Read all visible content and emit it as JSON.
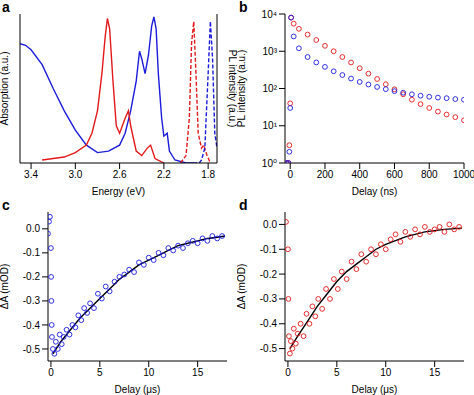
{
  "chart_data": [
    {
      "title": "a",
      "type": "line",
      "x_label": "Energy (eV)",
      "y_label": "Absorption (a.u.)",
      "y2_label": "PL intensity (a.u.)",
      "xlim": [
        3.5,
        1.72
      ],
      "xticks": [
        3.4,
        {
          "value": 3,
          "label": "3.0"
        },
        2.6,
        2.2,
        1.8
      ],
      "ylim": [
        0,
        1
      ],
      "y2lim": [
        0,
        1
      ],
      "tick_labels": "x",
      "series": [
        {
          "color": "#1c1cdc",
          "line_style": "solid",
          "x": [
            3.5,
            3.45,
            3.4,
            3.3,
            3.2,
            3.1,
            3.0,
            2.9,
            2.8,
            2.7,
            2.6,
            2.55,
            2.5,
            2.45,
            2.42,
            2.4,
            2.37,
            2.34,
            2.31,
            2.29,
            2.27,
            2.25,
            2.22,
            2.2,
            2.17,
            2.15,
            2.1,
            2.0,
            1.9
          ],
          "values": [
            0.8,
            0.79,
            0.76,
            0.66,
            0.5,
            0.35,
            0.22,
            0.12,
            0.07,
            0.08,
            0.12,
            0.2,
            0.35,
            0.55,
            0.75,
            0.7,
            0.6,
            0.72,
            0.92,
            0.98,
            0.9,
            0.6,
            0.3,
            0.18,
            0.2,
            0.08,
            0.02,
            0.0,
            0.0
          ]
        },
        {
          "color": "#e3191c",
          "line_style": "solid",
          "x": [
            3.3,
            3.1,
            3.0,
            2.9,
            2.85,
            2.8,
            2.76,
            2.73,
            2.71,
            2.69,
            2.66,
            2.63,
            2.6,
            2.55,
            2.52,
            2.5,
            2.45,
            2.4,
            2.35,
            2.32,
            2.28,
            2.2
          ],
          "values": [
            0.02,
            0.04,
            0.07,
            0.12,
            0.2,
            0.35,
            0.6,
            0.85,
            0.97,
            0.9,
            0.55,
            0.25,
            0.2,
            0.3,
            0.35,
            0.25,
            0.08,
            0.05,
            0.1,
            0.12,
            0.03,
            0.0
          ]
        },
        {
          "color": "#e3191c",
          "line_style": "dashed",
          "axis": "y2",
          "x": [
            2.05,
            2.0,
            1.97,
            1.95,
            1.93,
            1.91,
            1.89,
            1.86,
            1.84,
            1.81,
            1.78
          ],
          "values": [
            0.0,
            0.05,
            0.3,
            0.8,
            0.95,
            0.6,
            0.2,
            0.1,
            0.12,
            0.05,
            0.0
          ]
        },
        {
          "color": "#1c1cdc",
          "line_style": "dashed",
          "axis": "y2",
          "x": [
            1.88,
            1.86,
            1.83,
            1.8,
            1.78,
            1.76,
            1.74,
            1.72
          ],
          "values": [
            0.0,
            0.02,
            0.1,
            0.6,
            0.95,
            0.7,
            0.2,
            0.1
          ]
        }
      ]
    },
    {
      "title": "b",
      "type": "scatter",
      "x_label": "Delay (ns)",
      "y_label": "PL intensity (a.u.)",
      "log": "y",
      "xlim": [
        -30,
        1000
      ],
      "xticks": [
        0,
        200,
        400,
        600,
        800,
        1000
      ],
      "ylim": [
        1,
        10000
      ],
      "yticks": [
        {
          "value": 1,
          "label": "10⁰"
        },
        {
          "value": 10,
          "label": "10¹"
        },
        {
          "value": 100,
          "label": "10²"
        },
        {
          "value": 1000,
          "label": "10³"
        },
        {
          "value": 10000,
          "label": "10⁴"
        }
      ],
      "series": [
        {
          "color": "#e3191c",
          "marker": "circle",
          "x": [
            -20,
            -10,
            -5,
            0,
            5,
            20,
            50,
            100,
            150,
            200,
            250,
            300,
            350,
            400,
            450,
            500,
            550,
            600,
            650,
            700,
            750,
            800,
            850,
            900,
            950,
            1000
          ],
          "values": [
            1,
            1,
            3,
            40,
            8000,
            5500,
            4000,
            2800,
            2000,
            1400,
            1000,
            700,
            500,
            350,
            250,
            180,
            130,
            95,
            70,
            50,
            38,
            30,
            24,
            20,
            17,
            14
          ]
        },
        {
          "color": "#1c1cdc",
          "marker": "circle",
          "x": [
            -20,
            -10,
            -5,
            0,
            5,
            20,
            50,
            100,
            150,
            200,
            250,
            300,
            350,
            400,
            450,
            500,
            550,
            600,
            650,
            700,
            750,
            800,
            850,
            900,
            950,
            1000
          ],
          "values": [
            1,
            1,
            2,
            30,
            8000,
            2500,
            1200,
            700,
            500,
            380,
            290,
            230,
            185,
            150,
            128,
            110,
            96,
            85,
            77,
            70,
            64,
            60,
            57,
            55,
            52,
            50
          ]
        }
      ]
    },
    {
      "title": "c",
      "type": "scatter",
      "x_label": "Delay (μs)",
      "y_label": "ΔA (mOD)",
      "xlim": [
        -0.3,
        18
      ],
      "xticks": [
        0,
        5,
        10,
        15
      ],
      "ylim": [
        -0.55,
        0.07
      ],
      "yticks": [
        -0.5,
        -0.4,
        -0.3,
        -0.2,
        -0.1,
        {
          "value": 0,
          "label": "0.0"
        }
      ],
      "series": [
        {
          "color": "#1c1cdc",
          "marker": "circle",
          "x": [
            -0.3,
            -0.2,
            -0.1,
            0,
            0.02,
            0.05,
            0.08,
            0.1,
            0.2,
            0.35,
            0.5,
            0.7,
            0.9,
            1.1,
            1.3,
            1.6,
            1.9,
            2.2,
            2.5,
            2.8,
            3.1,
            3.4,
            3.7,
            4.0,
            4.4,
            4.8,
            5.2,
            5.6,
            6.0,
            6.5,
            7.0,
            7.5,
            8.0,
            8.5,
            9.0,
            9.5,
            10.0,
            10.5,
            11.0,
            11.5,
            12.0,
            12.5,
            13.0,
            13.5,
            14.0,
            14.5,
            15.0,
            15.5,
            16.0,
            16.5,
            17.0,
            17.5
          ],
          "values": [
            -0.02,
            0.03,
            0.05,
            -0.08,
            -0.2,
            -0.3,
            -0.4,
            -0.45,
            -0.5,
            -0.52,
            -0.47,
            -0.5,
            -0.44,
            -0.48,
            -0.45,
            -0.42,
            -0.44,
            -0.4,
            -0.41,
            -0.36,
            -0.38,
            -0.33,
            -0.35,
            -0.31,
            -0.33,
            -0.27,
            -0.29,
            -0.24,
            -0.26,
            -0.22,
            -0.2,
            -0.19,
            -0.17,
            -0.18,
            -0.14,
            -0.15,
            -0.12,
            -0.13,
            -0.1,
            -0.11,
            -0.08,
            -0.09,
            -0.07,
            -0.08,
            -0.06,
            -0.05,
            -0.06,
            -0.04,
            -0.05,
            -0.03,
            -0.04,
            -0.03
          ]
        },
        {
          "type": "line",
          "color": "#000000",
          "x": [
            0.2,
            1,
            2,
            3,
            4,
            5,
            6,
            7,
            8,
            9,
            10,
            11,
            12,
            13,
            14,
            15,
            16,
            17,
            17.8
          ],
          "values": [
            -0.52,
            -0.47,
            -0.42,
            -0.37,
            -0.33,
            -0.29,
            -0.25,
            -0.21,
            -0.18,
            -0.15,
            -0.13,
            -0.11,
            -0.09,
            -0.07,
            -0.06,
            -0.05,
            -0.04,
            -0.035,
            -0.03
          ]
        }
      ]
    },
    {
      "title": "d",
      "type": "scatter",
      "x_label": "Delay (μs)",
      "y_label": "ΔA (mOD)",
      "xlim": [
        -0.3,
        18
      ],
      "xticks": [
        0,
        5,
        10,
        15
      ],
      "ylim": [
        -0.55,
        0.05
      ],
      "yticks": [
        -0.5,
        -0.4,
        -0.3,
        -0.2,
        -0.1,
        {
          "value": 0,
          "label": "0.0"
        }
      ],
      "series": [
        {
          "color": "#e3191c",
          "marker": "circle",
          "x": [
            -0.2,
            0,
            0.05,
            0.1,
            0.2,
            0.3,
            0.45,
            0.6,
            0.8,
            1.0,
            1.3,
            1.6,
            1.9,
            2.2,
            2.5,
            2.8,
            3.1,
            3.5,
            3.9,
            4.3,
            4.7,
            5.1,
            5.5,
            6.0,
            6.5,
            7.0,
            7.5,
            8.0,
            8.5,
            9.0,
            9.5,
            10.0,
            10.5,
            11.0,
            11.5,
            12.0,
            12.5,
            13.0,
            13.5,
            14.0,
            14.5,
            15.0,
            15.5,
            16.0,
            16.5,
            17.0,
            17.5
          ],
          "values": [
            0.01,
            -0.1,
            -0.3,
            -0.45,
            -0.52,
            -0.47,
            -0.5,
            -0.42,
            -0.48,
            -0.44,
            -0.4,
            -0.45,
            -0.36,
            -0.4,
            -0.33,
            -0.37,
            -0.3,
            -0.34,
            -0.26,
            -0.3,
            -0.22,
            -0.26,
            -0.19,
            -0.22,
            -0.15,
            -0.18,
            -0.12,
            -0.15,
            -0.1,
            -0.12,
            -0.08,
            -0.1,
            -0.06,
            -0.04,
            -0.07,
            -0.03,
            -0.05,
            -0.02,
            -0.04,
            -0.01,
            -0.03,
            -0.02,
            -0.01,
            -0.03,
            0.0,
            -0.02,
            -0.01
          ]
        },
        {
          "type": "line",
          "color": "#000000",
          "x": [
            0.2,
            1,
            2,
            3,
            4,
            5,
            6,
            7,
            8,
            9,
            10,
            12,
            14,
            16,
            17.8
          ],
          "values": [
            -0.5,
            -0.45,
            -0.39,
            -0.33,
            -0.28,
            -0.23,
            -0.19,
            -0.16,
            -0.13,
            -0.1,
            -0.08,
            -0.05,
            -0.03,
            -0.02,
            -0.015
          ]
        }
      ]
    }
  ]
}
